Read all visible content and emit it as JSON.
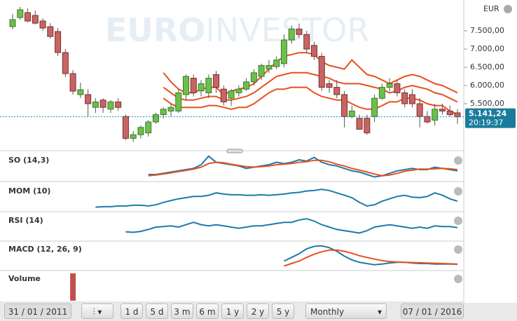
{
  "header": {
    "currency": "EUR"
  },
  "watermark": {
    "bold": "EURO",
    "light": "INVESTOR"
  },
  "chart_data": [
    {
      "type": "candlestick",
      "up_color": "#6cc04a",
      "down_color": "#c96464",
      "ylim": [
        4250,
        8250
      ],
      "yticks": [
        {
          "value": 7500,
          "label": "7.500,00"
        },
        {
          "value": 7000,
          "label": "7.000,00"
        },
        {
          "value": 6500,
          "label": "6.500,00"
        },
        {
          "value": 6000,
          "label": "6.000,00"
        },
        {
          "value": 5500,
          "label": "5.500,00"
        }
      ],
      "last": {
        "value": 5141.24,
        "label": "5.141,24",
        "time": "20:19:37"
      },
      "ohlc": [
        [
          7615,
          7960,
          7540,
          7808
        ],
        [
          7865,
          8154,
          7808,
          8077
        ],
        [
          8000,
          8115,
          7730,
          7770
        ],
        [
          7923,
          8058,
          7673,
          7710
        ],
        [
          7770,
          7846,
          7500,
          7577
        ],
        [
          7615,
          7710,
          7288,
          7346
        ],
        [
          7480,
          7577,
          6808,
          6904
        ],
        [
          6904,
          7000,
          6231,
          6327
        ],
        [
          6327,
          6423,
          5750,
          5846
        ],
        [
          5750,
          6077,
          5654,
          5885
        ],
        [
          5750,
          5900,
          5150,
          5500
        ],
        [
          5400,
          5650,
          5250,
          5550
        ],
        [
          5600,
          5650,
          5250,
          5400
        ],
        [
          5350,
          5600,
          5250,
          5550
        ],
        [
          5550,
          5650,
          5300,
          5400
        ],
        [
          5150,
          5200,
          4500,
          4550
        ],
        [
          4550,
          4750,
          4450,
          4650
        ],
        [
          4650,
          4900,
          4550,
          4850
        ],
        [
          4700,
          5050,
          4600,
          5000
        ],
        [
          5000,
          5250,
          4950,
          5200
        ],
        [
          5200,
          5400,
          5100,
          5350
        ],
        [
          5300,
          5500,
          5150,
          5400
        ],
        [
          5300,
          5900,
          5250,
          5800
        ],
        [
          5750,
          6300,
          5600,
          6250
        ],
        [
          6200,
          6300,
          5700,
          5800
        ],
        [
          5850,
          6150,
          5700,
          6050
        ],
        [
          5800,
          6300,
          5650,
          6200
        ],
        [
          6300,
          6400,
          5800,
          5950
        ],
        [
          5900,
          6000,
          5450,
          5550
        ],
        [
          5650,
          5900,
          5450,
          5850
        ],
        [
          5800,
          6000,
          5700,
          5900
        ],
        [
          5900,
          6200,
          5850,
          6100
        ],
        [
          6100,
          6450,
          6000,
          6350
        ],
        [
          6250,
          6600,
          6150,
          6550
        ],
        [
          6450,
          6700,
          6350,
          6550
        ],
        [
          6520,
          6800,
          6450,
          6700
        ],
        [
          6600,
          7400,
          6500,
          7250
        ],
        [
          7250,
          7650,
          7150,
          7550
        ],
        [
          7550,
          7700,
          7300,
          7400
        ],
        [
          7400,
          7500,
          6900,
          7000
        ],
        [
          7100,
          7200,
          6700,
          6800
        ],
        [
          6800,
          6900,
          5850,
          5950
        ],
        [
          6050,
          6150,
          5800,
          5950
        ],
        [
          5950,
          6150,
          5650,
          5750
        ],
        [
          5750,
          5850,
          4850,
          5150
        ],
        [
          5150,
          5450,
          5100,
          5300
        ],
        [
          5100,
          5200,
          4800,
          4800
        ],
        [
          5100,
          5200,
          4650,
          4700
        ],
        [
          5150,
          5750,
          5000,
          5650
        ],
        [
          5650,
          6050,
          5600,
          5950
        ],
        [
          5950,
          6200,
          5850,
          6050
        ],
        [
          6050,
          6150,
          5700,
          5800
        ],
        [
          5800,
          5900,
          5400,
          5500
        ],
        [
          5750,
          5900,
          5400,
          5500
        ],
        [
          5500,
          5650,
          4850,
          5150
        ],
        [
          5150,
          5300,
          4950,
          5000
        ],
        [
          5050,
          5500,
          4900,
          5350
        ],
        [
          5350,
          5500,
          5200,
          5300
        ],
        [
          5300,
          5450,
          5150,
          5200
        ],
        [
          5250,
          5350,
          4950,
          5141.24
        ]
      ],
      "series": [
        {
          "color": "#e8501e",
          "values": [
            null,
            null,
            null,
            null,
            null,
            null,
            null,
            null,
            null,
            null,
            null,
            null,
            null,
            null,
            null,
            null,
            null,
            null,
            null,
            null,
            6350,
            6100,
            5900,
            5800,
            5800,
            5900,
            5950,
            5950,
            5750,
            5850,
            5900,
            5950,
            6050,
            6250,
            6450,
            6650,
            6800,
            6850,
            6900,
            6900,
            6850,
            6650,
            6550,
            6500,
            6450,
            6700,
            6500,
            6300,
            6250,
            6150,
            6050,
            6150,
            6250,
            6300,
            6250,
            6150,
            6050,
            6000,
            5900,
            5800
          ]
        },
        {
          "color": "#e8501e",
          "values": [
            null,
            null,
            null,
            null,
            null,
            null,
            null,
            null,
            null,
            null,
            null,
            null,
            null,
            null,
            null,
            null,
            null,
            null,
            null,
            null,
            5950,
            5800,
            5650,
            5600,
            5600,
            5650,
            5700,
            5700,
            5600,
            5600,
            5650,
            5700,
            5800,
            5950,
            6100,
            6250,
            6300,
            6350,
            6350,
            6350,
            6300,
            6250,
            6200,
            6100,
            6050,
            6050,
            6050,
            6000,
            5950,
            5900,
            5800,
            5850,
            5950,
            6000,
            5950,
            5900,
            5800,
            5750,
            5650,
            5550
          ]
        },
        {
          "color": "#e8501e",
          "values": [
            null,
            null,
            null,
            null,
            null,
            null,
            null,
            null,
            null,
            null,
            null,
            null,
            null,
            null,
            null,
            null,
            null,
            null,
            null,
            null,
            5650,
            5500,
            5400,
            5400,
            5400,
            5400,
            5450,
            5450,
            5400,
            5350,
            5400,
            5400,
            5500,
            5650,
            5800,
            5900,
            5900,
            5950,
            5950,
            5950,
            5800,
            5700,
            5650,
            5600,
            5600,
            5500,
            5400,
            5350,
            5350,
            5450,
            5550,
            5550,
            5650,
            5650,
            5600,
            5500,
            5450,
            5450,
            5300,
            5200
          ]
        }
      ]
    },
    {
      "type": "line",
      "title": "SO (14,3)",
      "ylim": [
        0,
        100
      ],
      "series": [
        {
          "color": "#1f7aaa",
          "values": [
            null,
            null,
            null,
            null,
            null,
            null,
            null,
            null,
            null,
            null,
            null,
            null,
            null,
            null,
            null,
            null,
            null,
            null,
            20,
            20,
            25,
            30,
            35,
            40,
            45,
            60,
            95,
            70,
            65,
            60,
            55,
            45,
            50,
            55,
            60,
            70,
            65,
            70,
            80,
            75,
            90,
            70,
            60,
            55,
            45,
            35,
            30,
            20,
            10,
            15,
            25,
            35,
            40,
            45,
            40,
            40,
            50,
            45,
            40,
            35
          ]
        },
        {
          "color": "#e8501e",
          "values": [
            null,
            null,
            null,
            null,
            null,
            null,
            null,
            null,
            null,
            null,
            null,
            null,
            null,
            null,
            null,
            null,
            null,
            null,
            15,
            18,
            22,
            27,
            32,
            37,
            42,
            50,
            65,
            70,
            68,
            62,
            57,
            52,
            50,
            52,
            55,
            60,
            62,
            65,
            70,
            72,
            78,
            78,
            72,
            62,
            55,
            45,
            38,
            30,
            22,
            15,
            18,
            25,
            33,
            38,
            42,
            42,
            43,
            45,
            43,
            40
          ]
        }
      ]
    },
    {
      "type": "line",
      "title": "MOM (10)",
      "ylim": [
        0,
        100
      ],
      "series": [
        {
          "color": "#1f7aaa",
          "values": [
            null,
            null,
            null,
            null,
            null,
            null,
            null,
            null,
            null,
            null,
            null,
            10,
            12,
            12,
            15,
            15,
            18,
            18,
            15,
            20,
            30,
            38,
            45,
            50,
            55,
            55,
            60,
            70,
            65,
            62,
            62,
            60,
            60,
            62,
            60,
            62,
            65,
            70,
            72,
            78,
            80,
            85,
            80,
            70,
            60,
            50,
            30,
            15,
            20,
            35,
            45,
            55,
            60,
            52,
            50,
            55,
            70,
            60,
            45,
            35
          ]
        }
      ]
    },
    {
      "type": "line",
      "title": "RSI (14)",
      "ylim": [
        0,
        100
      ],
      "series": [
        {
          "color": "#1f7aaa",
          "values": [
            null,
            null,
            null,
            null,
            null,
            null,
            null,
            null,
            null,
            null,
            null,
            null,
            null,
            null,
            null,
            30,
            28,
            32,
            40,
            50,
            52,
            55,
            50,
            60,
            70,
            60,
            55,
            60,
            55,
            50,
            45,
            50,
            55,
            55,
            60,
            65,
            70,
            70,
            80,
            85,
            75,
            60,
            50,
            40,
            35,
            30,
            25,
            35,
            50,
            55,
            60,
            55,
            50,
            45,
            50,
            45,
            55,
            52,
            52,
            48
          ]
        }
      ]
    },
    {
      "type": "line",
      "title": "MACD (12, 26, 9)",
      "ylim": [
        0,
        100
      ],
      "series": [
        {
          "color": "#1f7aaa",
          "values": [
            null,
            null,
            null,
            null,
            null,
            null,
            null,
            null,
            null,
            null,
            null,
            null,
            null,
            null,
            null,
            null,
            null,
            null,
            null,
            null,
            null,
            null,
            null,
            null,
            null,
            null,
            null,
            null,
            null,
            null,
            null,
            null,
            null,
            null,
            null,
            null,
            30,
            45,
            60,
            80,
            90,
            92,
            85,
            70,
            50,
            35,
            25,
            20,
            15,
            18,
            22,
            25,
            25,
            22,
            20,
            20,
            18,
            18,
            18,
            17
          ]
        },
        {
          "color": "#e8501e",
          "values": [
            null,
            null,
            null,
            null,
            null,
            null,
            null,
            null,
            null,
            null,
            null,
            null,
            null,
            null,
            null,
            null,
            null,
            null,
            null,
            null,
            null,
            null,
            null,
            null,
            null,
            null,
            null,
            null,
            null,
            null,
            null,
            null,
            null,
            null,
            null,
            null,
            10,
            20,
            30,
            45,
            58,
            68,
            75,
            75,
            70,
            62,
            52,
            45,
            38,
            32,
            28,
            26,
            25,
            24,
            23,
            22,
            21,
            20,
            19,
            18
          ]
        }
      ]
    },
    {
      "type": "bar",
      "title": "Volume",
      "ylim": [
        0,
        100
      ],
      "color": "#c0504d",
      "values": [
        0,
        0,
        0,
        0,
        0,
        0,
        0,
        0,
        100,
        0,
        0,
        0,
        0,
        0,
        0,
        0,
        0,
        0,
        0,
        0,
        0,
        0,
        0,
        0,
        0,
        0,
        0,
        0,
        0,
        0,
        0,
        0,
        0,
        0,
        0,
        0,
        0,
        0,
        0,
        0,
        0,
        0,
        0,
        0,
        0,
        0,
        0,
        0,
        0,
        0,
        0,
        0,
        0,
        0,
        0,
        0,
        0,
        0,
        0,
        0
      ]
    }
  ],
  "toolbar": {
    "start_date": "31 / 01 / 2011",
    "end_date": "07 / 01 / 2016",
    "ranges": [
      "1 d",
      "5 d",
      "3 m",
      "6 m",
      "1 y",
      "2 y",
      "5 y"
    ],
    "interval": "Monthly"
  }
}
